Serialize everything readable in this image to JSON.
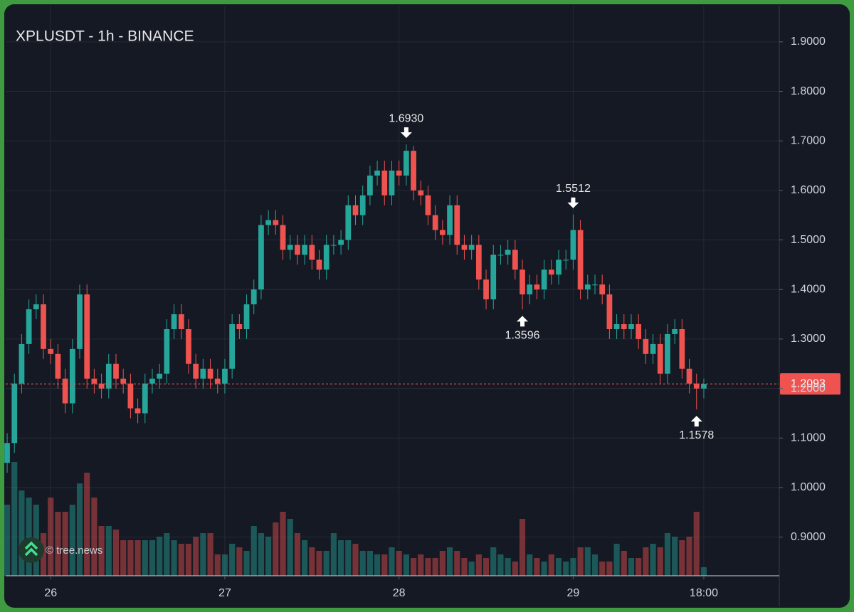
{
  "chart_data": {
    "type": "candlestick",
    "title": "XPLUSDT - 1h - BINANCE",
    "watermark": "© tree.news",
    "up_color": "#26a69a",
    "down_color": "#ef5350",
    "grid": true,
    "xlim": [
      -0.2,
      106.4
    ],
    "xticks": [
      {
        "value": 6,
        "label": "26"
      },
      {
        "value": 30,
        "label": "27"
      },
      {
        "value": 54,
        "label": "28"
      },
      {
        "value": 78,
        "label": "29"
      },
      {
        "value": 96,
        "label": "18:00"
      }
    ],
    "ylim": [
      0.822,
      1.973
    ],
    "yticks": [
      {
        "value": 0.9,
        "label": "0.9000"
      },
      {
        "value": 1.0,
        "label": "1.0000"
      },
      {
        "value": 1.1,
        "label": "1.1000"
      },
      {
        "value": 1.2,
        "label": "1.2000"
      },
      {
        "value": 1.3,
        "label": "1.3000"
      },
      {
        "value": 1.4,
        "label": "1.4000"
      },
      {
        "value": 1.5,
        "label": "1.5000"
      },
      {
        "value": 1.6,
        "label": "1.6000"
      },
      {
        "value": 1.7,
        "label": "1.7000"
      },
      {
        "value": 1.8,
        "label": "1.8000"
      },
      {
        "value": 1.9,
        "label": "1.9000"
      }
    ],
    "last_price": {
      "value": 1.2093,
      "label": "1.2093"
    },
    "annotations": [
      {
        "text": "1.6930",
        "candle": 55,
        "dir": "down"
      },
      {
        "text": "1.5512",
        "candle": 78,
        "dir": "down"
      },
      {
        "text": "1.3596",
        "candle": 71,
        "dir": "up"
      },
      {
        "text": "1.1578",
        "candle": 95,
        "dir": "up"
      }
    ],
    "open": [
      1.05,
      1.09,
      1.21,
      1.29,
      1.36,
      1.37,
      1.28,
      1.27,
      1.22,
      1.17,
      1.28,
      1.39,
      1.22,
      1.21,
      1.2,
      1.25,
      1.22,
      1.21,
      1.16,
      1.15,
      1.21,
      1.22,
      1.23,
      1.32,
      1.35,
      1.32,
      1.25,
      1.22,
      1.24,
      1.22,
      1.21,
      1.24,
      1.33,
      1.32,
      1.37,
      1.4,
      1.53,
      1.54,
      1.53,
      1.48,
      1.49,
      1.47,
      1.49,
      1.46,
      1.44,
      1.49,
      1.49,
      1.5,
      1.57,
      1.55,
      1.59,
      1.63,
      1.64,
      1.59,
      1.64,
      1.63,
      1.68,
      1.6,
      1.59,
      1.55,
      1.52,
      1.51,
      1.57,
      1.49,
      1.48,
      1.49,
      1.42,
      1.38,
      1.47,
      1.47,
      1.48,
      1.44,
      1.39,
      1.41,
      1.4,
      1.44,
      1.43,
      1.46,
      1.46,
      1.52,
      1.4,
      1.41,
      1.41,
      1.39,
      1.32,
      1.33,
      1.32,
      1.33,
      1.3,
      1.27,
      1.29,
      1.23,
      1.31,
      1.32,
      1.24,
      1.21,
      1.2
    ],
    "high": [
      1.11,
      1.23,
      1.31,
      1.38,
      1.39,
      1.39,
      1.3,
      1.29,
      1.24,
      1.3,
      1.41,
      1.41,
      1.24,
      1.23,
      1.27,
      1.27,
      1.24,
      1.23,
      1.18,
      1.23,
      1.24,
      1.25,
      1.34,
      1.37,
      1.37,
      1.34,
      1.27,
      1.26,
      1.26,
      1.24,
      1.26,
      1.35,
      1.35,
      1.39,
      1.42,
      1.55,
      1.56,
      1.56,
      1.55,
      1.51,
      1.51,
      1.51,
      1.51,
      1.48,
      1.51,
      1.51,
      1.52,
      1.59,
      1.59,
      1.61,
      1.65,
      1.66,
      1.66,
      1.66,
      1.66,
      1.693,
      1.69,
      1.62,
      1.61,
      1.57,
      1.54,
      1.59,
      1.59,
      1.51,
      1.51,
      1.51,
      1.44,
      1.49,
      1.49,
      1.5,
      1.5,
      1.46,
      1.43,
      1.43,
      1.46,
      1.46,
      1.48,
      1.48,
      1.5512,
      1.54,
      1.43,
      1.43,
      1.43,
      1.41,
      1.35,
      1.35,
      1.35,
      1.35,
      1.32,
      1.31,
      1.31,
      1.33,
      1.34,
      1.34,
      1.26,
      1.23,
      1.22
    ],
    "low": [
      1.03,
      1.07,
      1.19,
      1.27,
      1.34,
      1.26,
      1.25,
      1.2,
      1.15,
      1.15,
      1.26,
      1.2,
      1.19,
      1.18,
      1.18,
      1.2,
      1.19,
      1.14,
      1.13,
      1.13,
      1.19,
      1.2,
      1.21,
      1.3,
      1.3,
      1.23,
      1.2,
      1.2,
      1.2,
      1.19,
      1.19,
      1.22,
      1.3,
      1.3,
      1.35,
      1.38,
      1.51,
      1.51,
      1.46,
      1.46,
      1.45,
      1.45,
      1.44,
      1.42,
      1.42,
      1.47,
      1.47,
      1.48,
      1.53,
      1.53,
      1.57,
      1.61,
      1.57,
      1.57,
      1.61,
      1.61,
      1.58,
      1.57,
      1.53,
      1.5,
      1.49,
      1.49,
      1.47,
      1.46,
      1.46,
      1.4,
      1.36,
      1.36,
      1.45,
      1.45,
      1.42,
      1.3596,
      1.37,
      1.38,
      1.38,
      1.41,
      1.41,
      1.44,
      1.44,
      1.38,
      1.38,
      1.39,
      1.37,
      1.3,
      1.3,
      1.3,
      1.3,
      1.28,
      1.25,
      1.25,
      1.21,
      1.21,
      1.29,
      1.22,
      1.19,
      1.1578,
      1.18
    ],
    "close": [
      1.09,
      1.21,
      1.29,
      1.36,
      1.37,
      1.28,
      1.27,
      1.22,
      1.17,
      1.28,
      1.39,
      1.22,
      1.21,
      1.2,
      1.25,
      1.22,
      1.21,
      1.16,
      1.15,
      1.21,
      1.22,
      1.23,
      1.32,
      1.35,
      1.32,
      1.25,
      1.22,
      1.24,
      1.22,
      1.21,
      1.24,
      1.33,
      1.32,
      1.37,
      1.4,
      1.53,
      1.54,
      1.53,
      1.48,
      1.49,
      1.47,
      1.49,
      1.46,
      1.44,
      1.49,
      1.49,
      1.5,
      1.57,
      1.55,
      1.59,
      1.63,
      1.64,
      1.59,
      1.64,
      1.63,
      1.68,
      1.6,
      1.59,
      1.55,
      1.52,
      1.51,
      1.57,
      1.49,
      1.48,
      1.49,
      1.42,
      1.38,
      1.47,
      1.47,
      1.48,
      1.44,
      1.39,
      1.41,
      1.4,
      1.44,
      1.43,
      1.46,
      1.46,
      1.52,
      1.4,
      1.41,
      1.41,
      1.39,
      1.32,
      1.33,
      1.32,
      1.33,
      1.3,
      1.27,
      1.29,
      1.23,
      1.31,
      1.32,
      1.24,
      1.21,
      1.2,
      1.2093
    ],
    "volume": [
      100,
      160,
      120,
      110,
      100,
      60,
      110,
      90,
      90,
      100,
      130,
      145,
      110,
      70,
      70,
      65,
      50,
      50,
      50,
      50,
      50,
      55,
      60,
      50,
      45,
      45,
      55,
      60,
      60,
      30,
      30,
      45,
      40,
      35,
      70,
      60,
      55,
      75,
      90,
      80,
      60,
      50,
      40,
      35,
      35,
      60,
      50,
      50,
      45,
      35,
      35,
      30,
      30,
      40,
      35,
      30,
      25,
      30,
      25,
      25,
      35,
      40,
      35,
      25,
      20,
      30,
      25,
      40,
      30,
      25,
      20,
      80,
      30,
      25,
      20,
      30,
      25,
      20,
      25,
      40,
      40,
      30,
      20,
      20,
      45,
      35,
      25,
      25,
      40,
      45,
      40,
      60,
      55,
      50,
      55,
      90,
      12
    ]
  }
}
